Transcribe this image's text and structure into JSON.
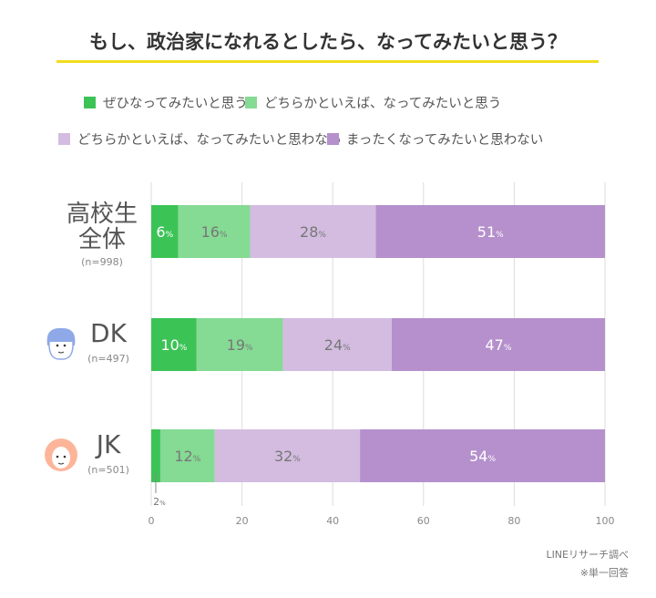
{
  "chart_data": {
    "type": "bar",
    "orientation": "horizontal-stacked-percent",
    "title": "もし、政治家になれるとしたら、なってみたいと思う？",
    "categories": [
      {
        "label": "高校生\n全体",
        "n": "(n=998)",
        "icon": ""
      },
      {
        "label": "DK",
        "n": "(n=497)",
        "icon": "boy-face-icon"
      },
      {
        "label": "JK",
        "n": "(n=501)",
        "icon": "girl-face-icon"
      }
    ],
    "series": [
      {
        "name": "ぜひなってみたいと思う",
        "color": "#3cc356",
        "values": [
          6,
          10,
          2
        ]
      },
      {
        "name": "どちらかといえば、なってみたいと思う",
        "color": "#85da94",
        "values": [
          16,
          19,
          12
        ]
      },
      {
        "name": "どちらかといえば、なってみたいと思わない",
        "color": "#d3bce0",
        "values": [
          28,
          24,
          32
        ]
      },
      {
        "name": "まったくなってみたいと思わない",
        "color": "#b590cc",
        "values": [
          51,
          47,
          54
        ]
      }
    ],
    "xlim": [
      0,
      100
    ],
    "xticks": [
      0,
      20,
      40,
      60,
      80,
      100
    ],
    "grid": true,
    "legend_placement": "top",
    "unit": "%"
  },
  "footer": {
    "source": "LINEリサーチ調べ",
    "note": "※単一回答"
  }
}
